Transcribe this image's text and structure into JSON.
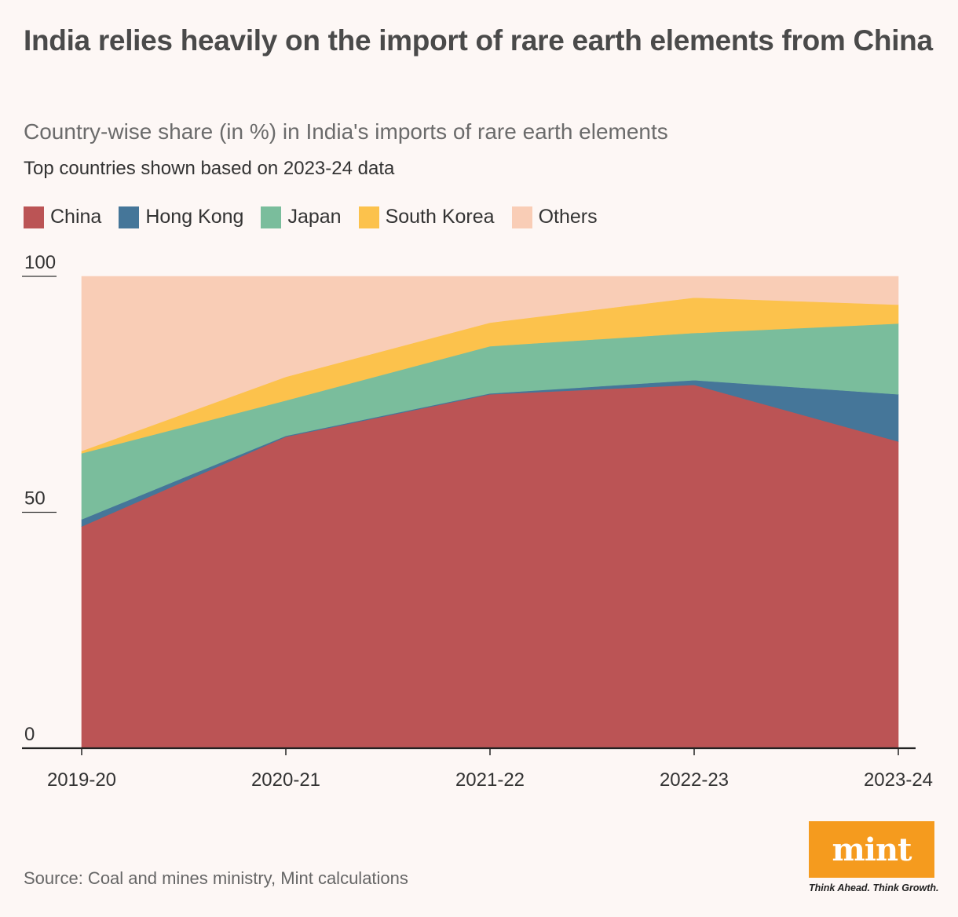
{
  "title": "India relies heavily on the import of rare earth elements from China",
  "subtitle": "Country-wise share (in %) in India's imports of rare earth elements",
  "note": "Top countries shown based on 2023-24 data",
  "source": "Source: Coal and mines ministry, Mint calculations",
  "logo": {
    "text": "mint",
    "tagline": "Think Ahead. Think Growth.",
    "color": "#f59b1e"
  },
  "chart_data": {
    "type": "area",
    "stacked": true,
    "categories": [
      "2019-20",
      "2020-21",
      "2021-22",
      "2022-23",
      "2023-24"
    ],
    "series": [
      {
        "name": "China",
        "color": "#bb5455",
        "values": [
          47,
          66,
          75,
          77,
          65
        ]
      },
      {
        "name": "Hong Kong",
        "color": "#457699",
        "values": [
          1.5,
          0.2,
          0.2,
          1,
          10
        ]
      },
      {
        "name": "Japan",
        "color": "#7abd9c",
        "values": [
          14,
          7.5,
          10,
          10,
          15
        ]
      },
      {
        "name": "South Korea",
        "color": "#fcc24c",
        "values": [
          0.5,
          5,
          5,
          7.5,
          4
        ]
      },
      {
        "name": "Others",
        "color": "#f9cdb6",
        "values": [
          37,
          21.3,
          9.8,
          4.5,
          6
        ]
      }
    ],
    "y_ticks": [
      0,
      50,
      100
    ],
    "ylim": [
      0,
      100
    ],
    "grid": false,
    "legend_position": "top-left"
  }
}
